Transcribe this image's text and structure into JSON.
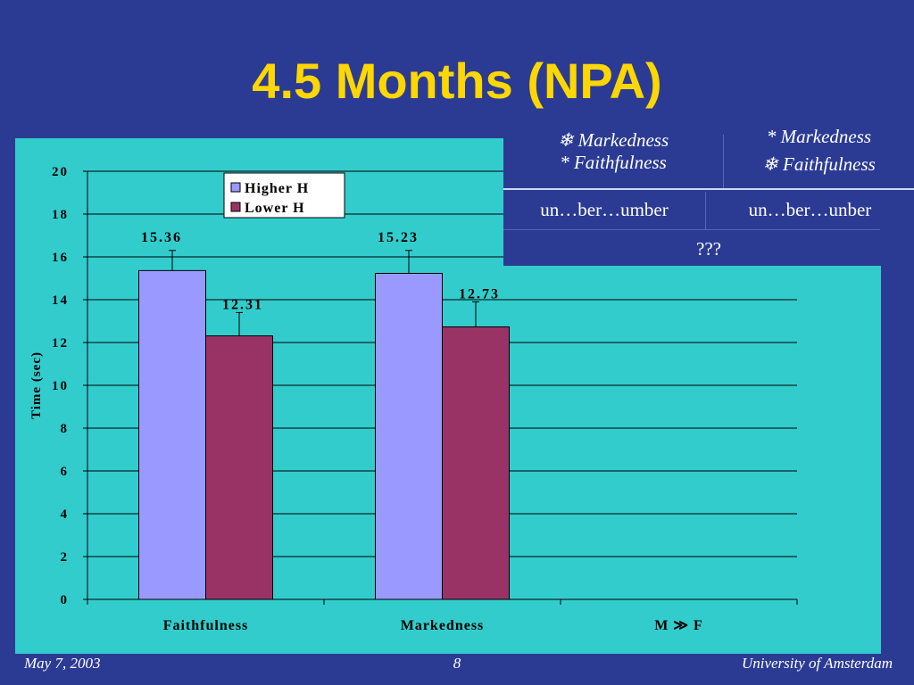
{
  "slide": {
    "title": "4.5 Months (NPA)",
    "background": "#2b3b94",
    "title_color": "#ffd700",
    "panel_color": "#33cccc"
  },
  "chart_data": {
    "type": "bar",
    "categories": [
      "Faithfulness",
      "Markedness",
      "M ≫ F"
    ],
    "series": [
      {
        "name": "Higher H",
        "color": "#9999ff",
        "values": [
          15.36,
          15.23,
          null
        ],
        "error_upper": [
          16.3,
          16.3,
          null
        ]
      },
      {
        "name": "Lower H",
        "color": "#993366",
        "values": [
          12.31,
          12.73,
          null
        ],
        "error_upper": [
          13.4,
          13.9,
          null
        ]
      }
    ],
    "data_labels": [
      [
        "15.36",
        "15.23"
      ],
      [
        "12.31",
        "12.73"
      ]
    ],
    "ylabel": "Time (sec)",
    "xlabel": "",
    "ylim": [
      0,
      20
    ],
    "yticks": [
      "0",
      "2",
      "4",
      "6",
      "8",
      "10",
      "12",
      "14",
      "16",
      "18",
      "20"
    ],
    "grid": true,
    "legend_position": "top"
  },
  "table": {
    "col1_line1": "❄ Markedness",
    "col1_line2": "* Faithfulness",
    "col2_line1": "* Markedness",
    "col2_line2": "❄ Faithfulness",
    "row2_col1": "un…ber…umber",
    "row2_col2": "un…ber…unber",
    "row3": "???"
  },
  "footer": {
    "date": "May 7, 2003",
    "page": "8",
    "org": "University of Amsterdam"
  }
}
